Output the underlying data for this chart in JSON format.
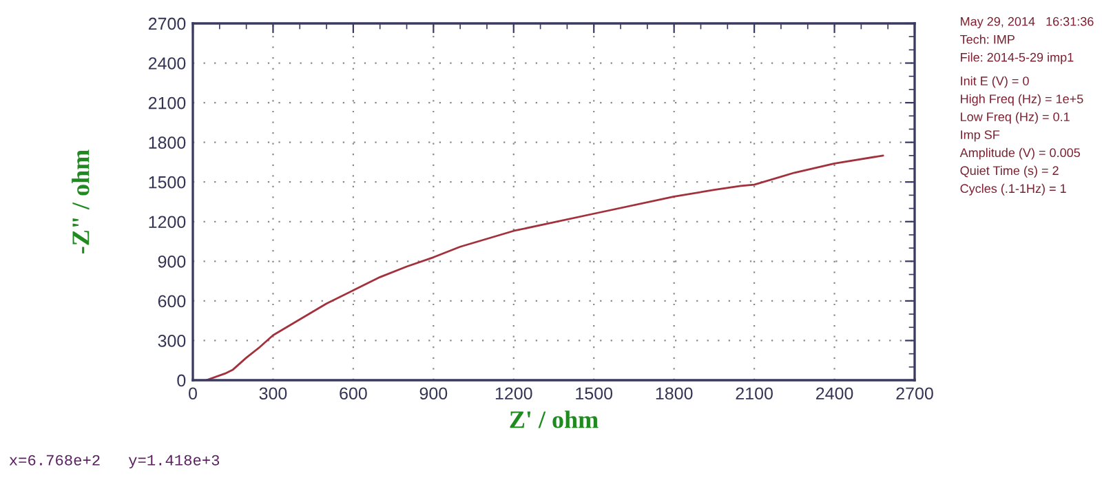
{
  "chart_data": {
    "type": "line",
    "xlabel": "Z' / ohm",
    "ylabel": "-Z\" / ohm",
    "x": [
      50,
      120,
      150,
      200,
      250,
      300,
      400,
      500,
      600,
      700,
      800,
      900,
      1000,
      1100,
      1200,
      1500,
      1800,
      1950,
      2050,
      2100,
      2250,
      2400,
      2582
    ],
    "series": [
      {
        "color": "#a3313c",
        "values": [
          0,
          50,
          80,
          170,
          250,
          340,
          460,
          580,
          680,
          780,
          860,
          930,
          1010,
          1070,
          1130,
          1260,
          1390,
          1440,
          1470,
          1480,
          1570,
          1640,
          1700
        ]
      }
    ],
    "xlim": [
      0,
      2700
    ],
    "ylim": [
      0,
      2700
    ],
    "xticks": [
      0,
      300,
      600,
      900,
      1200,
      1500,
      1800,
      2100,
      2400,
      2700
    ],
    "yticks": [
      0,
      300,
      600,
      900,
      1200,
      1500,
      1800,
      2100,
      2400,
      2700
    ],
    "grid": true,
    "marker": "none",
    "line_style": "solid",
    "annotations": [
      "May 29, 2014   16:31:36",
      "Tech: IMP",
      "File: 2014-5-29 imp1",
      "Init E (V) = 0",
      "High Freq (Hz) = 1e+5",
      "Low Freq (Hz) = 0.1",
      "Imp SF",
      "Amplitude (V) = 0.005",
      "Quiet Time (s) = 2",
      "Cycles (.1-1Hz) = 1",
      "x=6.768e+2   y=1.418e+3"
    ]
  }
}
